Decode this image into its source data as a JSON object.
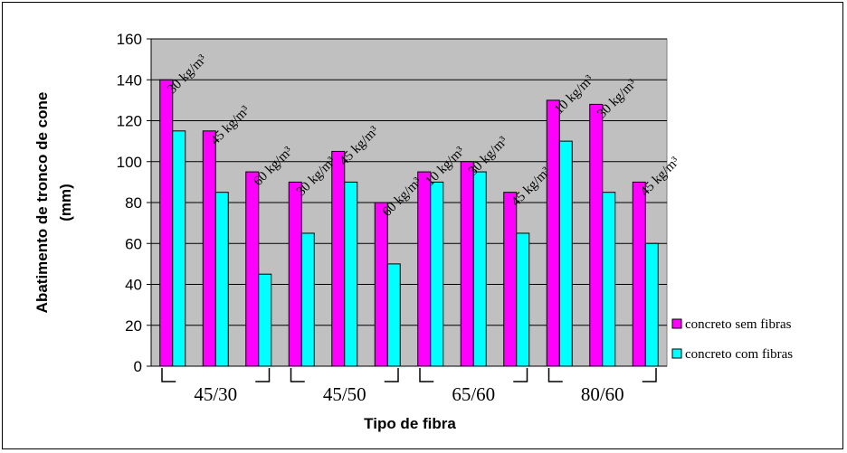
{
  "chart_data": {
    "type": "bar",
    "title": "",
    "xlabel": "Tipo de fibra",
    "ylabel_lines": [
      "Abatimento de tronco de cone",
      "(mm)"
    ],
    "ylim": [
      0,
      160
    ],
    "yticks": [
      0,
      20,
      40,
      60,
      80,
      100,
      120,
      140,
      160
    ],
    "grid": true,
    "legend_position": "right",
    "plot_background": "#c0c0c0",
    "groups": [
      {
        "label": "45/30",
        "start": 0,
        "end": 2
      },
      {
        "label": "45/50",
        "start": 3,
        "end": 5
      },
      {
        "label": "65/60",
        "start": 6,
        "end": 8
      },
      {
        "label": "80/60",
        "start": 9,
        "end": 11
      }
    ],
    "categories": [
      "30 kg/m³",
      "45 kg/m³",
      "60 kg/m³",
      "30 kg/m³",
      "45 kg/m³",
      "60 kg/m³",
      "10 kg/m³",
      "30 kg/m³",
      "45 kg/m³",
      "10 kg/m³",
      "30 kg/m³",
      "45 kg/m³"
    ],
    "series": [
      {
        "name": "concreto sem fibras",
        "color": "#ff00ff",
        "values": [
          140,
          115,
          95,
          90,
          105,
          80,
          95,
          100,
          85,
          130,
          128,
          90
        ]
      },
      {
        "name": "concreto com fibras",
        "color": "#00ffff",
        "values": [
          115,
          85,
          45,
          65,
          90,
          50,
          90,
          95,
          65,
          110,
          85,
          60
        ]
      }
    ]
  }
}
